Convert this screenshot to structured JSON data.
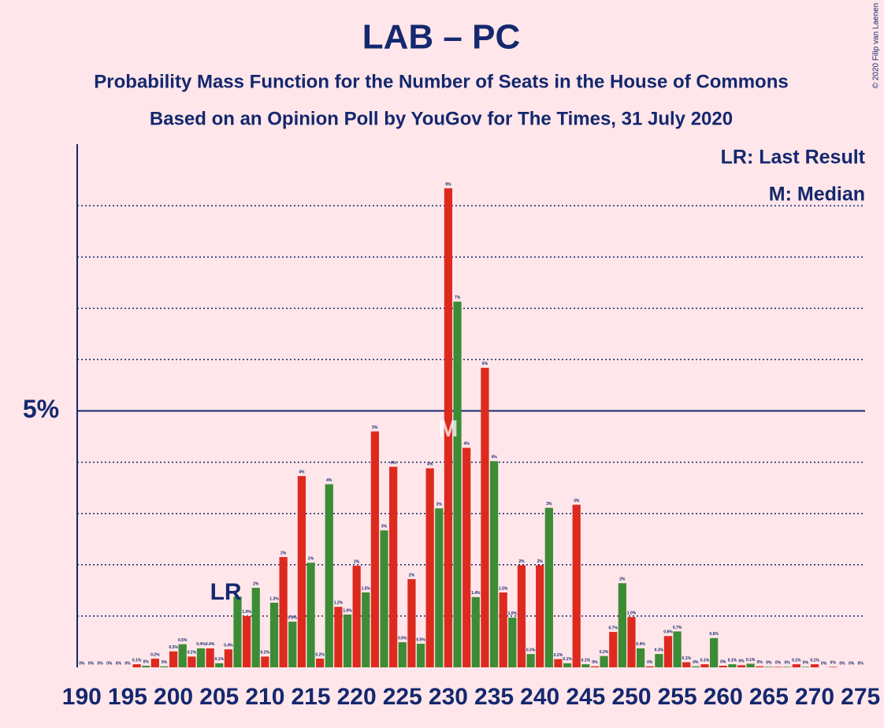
{
  "chart_data": {
    "type": "bar",
    "title": "LAB – PC",
    "subtitle": "Probability Mass Function for the Number of Seats in the House of Commons",
    "subtitle2": "Based on an Opinion Poll by YouGov for The Times, 31 July 2020",
    "legend_lr": "LR: Last Result",
    "legend_median": "M: Median",
    "copyright": "© 2020 Filip van Laenen",
    "last_result": 207,
    "last_result_label": "LR",
    "median": 230,
    "median_label": "M",
    "bar_colors": [
      "#dd2a1f",
      "#3c8c36"
    ],
    "x": [
      190,
      191,
      192,
      193,
      194,
      195,
      196,
      197,
      198,
      199,
      200,
      201,
      202,
      203,
      204,
      205,
      206,
      207,
      208,
      209,
      210,
      211,
      212,
      213,
      214,
      215,
      216,
      217,
      218,
      219,
      220,
      221,
      222,
      223,
      224,
      225,
      226,
      227,
      228,
      229,
      230,
      231,
      232,
      233,
      234,
      235,
      236,
      237,
      238,
      239,
      240,
      241,
      242,
      243,
      244,
      245,
      246,
      247,
      248,
      249,
      250,
      251,
      252,
      253,
      254,
      255,
      256,
      257,
      258,
      259,
      260,
      261,
      262,
      263,
      264,
      265,
      266,
      267,
      268,
      269,
      270,
      271,
      272,
      273,
      274,
      275
    ],
    "values": [
      0,
      0,
      0,
      0,
      0,
      0,
      0.06,
      0.03,
      0.17,
      0.02,
      0.31,
      0.45,
      0.21,
      0.37,
      0.37,
      0.08,
      0.35,
      1.38,
      1.0,
      1.55,
      0.21,
      1.26,
      2.15,
      0.89,
      3.73,
      2.04,
      0.17,
      3.57,
      1.18,
      1.03,
      1.98,
      1.46,
      4.6,
      2.67,
      3.91,
      0.49,
      1.72,
      0.46,
      3.88,
      3.1,
      9.34,
      7.13,
      4.28,
      1.37,
      5.84,
      4.02,
      1.46,
      0.97,
      1.99,
      0.26,
      1.99,
      3.11,
      0.16,
      0.08,
      3.17,
      0.06,
      0.02,
      0.22,
      0.69,
      1.64,
      0.98,
      0.37,
      0.02,
      0.26,
      0.61,
      0.7,
      0.1,
      0.02,
      0.06,
      0.57,
      0.03,
      0.06,
      0.04,
      0.07,
      0.02,
      0.01,
      0.01,
      0.01,
      0.06,
      0.01,
      0.06,
      0,
      0.01,
      0,
      0,
      0
    ],
    "value_labels": [
      "0%",
      "0%",
      "0%",
      "0%",
      "0%",
      "0%",
      "0.1%",
      "0%",
      "0.2%",
      "0%",
      "0.3%",
      "0.5%",
      "0.2%",
      "0.4%",
      "0.4%",
      "0.1%",
      "0.4%",
      null,
      "1.0%",
      "2%",
      "0.2%",
      "1.3%",
      "2%",
      "0.9%",
      "4%",
      "2%",
      "0.2%",
      "4%",
      "1.2%",
      "1.0%",
      "2%",
      "1.5%",
      "5%",
      "3%",
      "4%",
      "0.5%",
      "2%",
      "0.5%",
      "4%",
      "3%",
      "9%",
      "7%",
      "4%",
      "1.4%",
      "6%",
      "4%",
      "1.5%",
      "1.0%",
      "2%",
      "0.3%",
      "2%",
      "3%",
      "0.2%",
      "0.1%",
      "3%",
      "0.1%",
      "0%",
      "0.2%",
      "0.7%",
      "2%",
      "1.0%",
      "0.4%",
      "0%",
      "0.3%",
      "0.6%",
      "0.7%",
      "0.1%",
      "0%",
      "0.1%",
      "0.6%",
      "0%",
      "0.1%",
      "0%",
      "0.1%",
      "0%",
      "0%",
      "0%",
      "0%",
      "0.1%",
      "0%",
      "0.1%",
      "0%",
      "0%",
      "0%",
      "0%",
      "0%"
    ],
    "xlim": [
      189.5,
      275.5
    ],
    "xticks": [
      190,
      195,
      200,
      205,
      210,
      215,
      220,
      225,
      230,
      235,
      240,
      245,
      250,
      255,
      260,
      265,
      270,
      275
    ],
    "ylim": [
      0,
      10.2
    ],
    "yticks": [
      {
        "value": 5,
        "label": "5%"
      }
    ],
    "minor_gridlines": [
      1,
      2,
      3,
      4,
      6,
      7,
      8,
      9
    ]
  }
}
